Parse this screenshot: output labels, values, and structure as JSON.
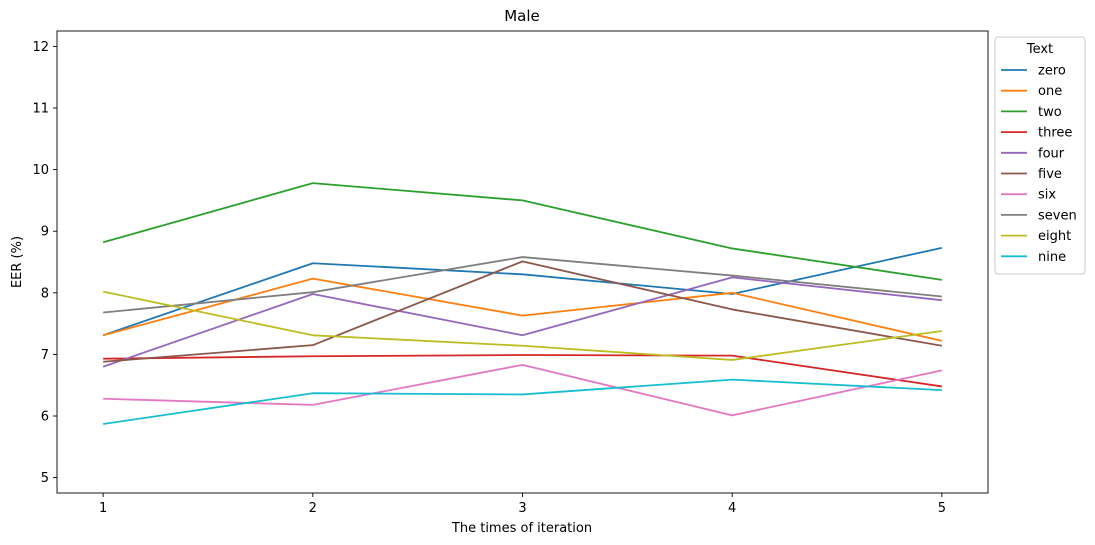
{
  "chart_data": {
    "type": "line",
    "title": "Male",
    "xlabel": "The times of iteration",
    "ylabel": "EER (%)",
    "x": [
      1,
      2,
      3,
      4,
      5
    ],
    "xticks": [
      "1",
      "2",
      "3",
      "4",
      "5"
    ],
    "yticks": [
      "5",
      "6",
      "7",
      "8",
      "9",
      "10",
      "11",
      "12"
    ],
    "ylim": [
      4.75,
      12.25
    ],
    "legend": {
      "title": "Text",
      "placement": "outside-right"
    },
    "series": [
      {
        "name": "zero",
        "color": "#1f77b4",
        "values": [
          7.31,
          8.48,
          8.3,
          7.98,
          8.73
        ]
      },
      {
        "name": "one",
        "color": "#ff7f0e",
        "values": [
          7.31,
          8.23,
          7.63,
          8.0,
          7.22
        ]
      },
      {
        "name": "two",
        "color": "#2ca02c",
        "values": [
          8.82,
          9.78,
          9.5,
          8.72,
          8.21
        ]
      },
      {
        "name": "three",
        "color": "#d62728",
        "values": [
          6.93,
          6.97,
          6.99,
          6.98,
          6.48
        ]
      },
      {
        "name": "four",
        "color": "#9467bd",
        "values": [
          6.8,
          7.98,
          7.31,
          8.25,
          7.88
        ]
      },
      {
        "name": "five",
        "color": "#8c564b",
        "values": [
          6.88,
          7.15,
          8.51,
          7.73,
          7.14
        ]
      },
      {
        "name": "six",
        "color": "#e377c2",
        "values": [
          6.28,
          6.18,
          6.83,
          6.01,
          6.74
        ]
      },
      {
        "name": "seven",
        "color": "#7f7f7f",
        "values": [
          7.68,
          8.01,
          8.58,
          8.28,
          7.94
        ]
      },
      {
        "name": "eight",
        "color": "#bcbd22",
        "values": [
          8.02,
          7.31,
          7.14,
          6.91,
          7.38
        ]
      },
      {
        "name": "nine",
        "color": "#17becf",
        "values": [
          5.87,
          6.37,
          6.35,
          6.59,
          6.42
        ]
      }
    ]
  }
}
